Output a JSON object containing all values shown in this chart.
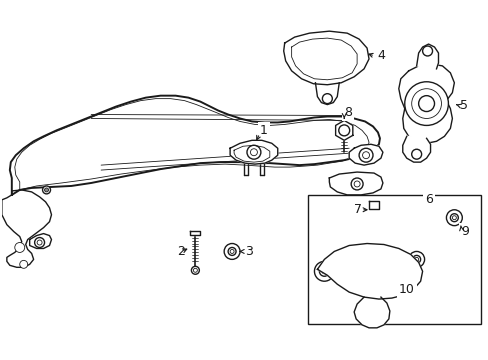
{
  "background_color": "#ffffff",
  "line_color": "#1a1a1a",
  "fig_width": 4.89,
  "fig_height": 3.6,
  "dpi": 100,
  "border_color": "#cccccc",
  "label_fontsize": 9,
  "annotation_lw": 0.8
}
